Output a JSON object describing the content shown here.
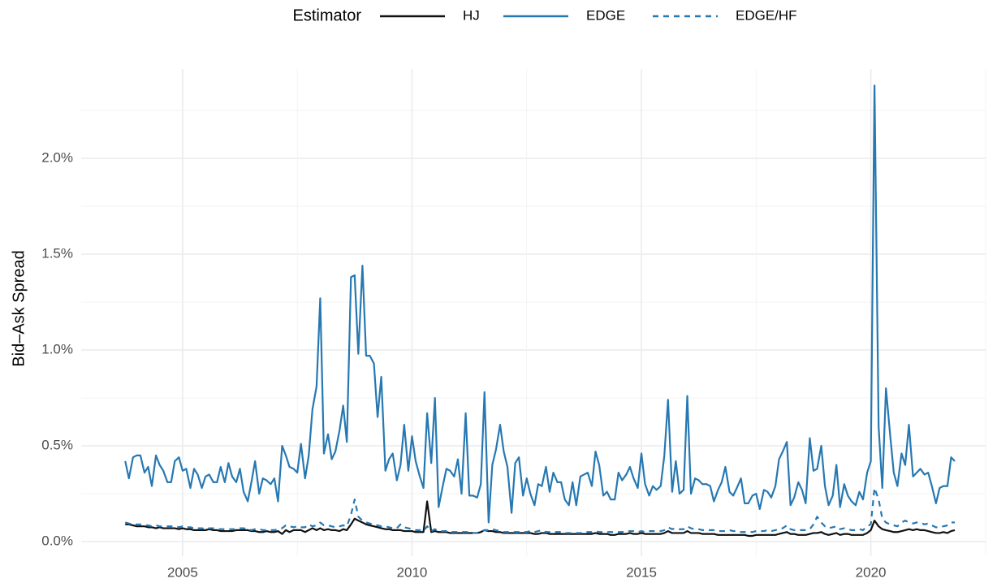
{
  "chart_data": {
    "type": "line",
    "legend_title": "Estimator",
    "y_label": "Bid–Ask Spread",
    "grid": true,
    "legend_position": "top",
    "xlim": [
      2002.79,
      2022.52
    ],
    "xticks": [
      2005,
      2010,
      2015,
      2020
    ],
    "ylim": [
      -0.076,
      2.466
    ],
    "yticks": [
      {
        "value": 0,
        "label": "0.0%"
      },
      {
        "value": 0.5,
        "label": "0.5%"
      },
      {
        "value": 1,
        "label": "1.0%"
      },
      {
        "value": 1.5,
        "label": "1.5%"
      },
      {
        "value": 2,
        "label": "2.0%"
      }
    ],
    "x": [
      2003.75,
      2003.83,
      2003.92,
      2004.0,
      2004.08,
      2004.17,
      2004.25,
      2004.33,
      2004.42,
      2004.5,
      2004.58,
      2004.67,
      2004.75,
      2004.83,
      2004.92,
      2005.0,
      2005.08,
      2005.17,
      2005.25,
      2005.33,
      2005.42,
      2005.5,
      2005.58,
      2005.67,
      2005.75,
      2005.83,
      2005.92,
      2006.0,
      2006.08,
      2006.17,
      2006.25,
      2006.33,
      2006.42,
      2006.5,
      2006.58,
      2006.67,
      2006.75,
      2006.83,
      2006.92,
      2007.0,
      2007.08,
      2007.17,
      2007.25,
      2007.33,
      2007.42,
      2007.5,
      2007.58,
      2007.67,
      2007.75,
      2007.83,
      2007.92,
      2008.0,
      2008.08,
      2008.17,
      2008.25,
      2008.33,
      2008.42,
      2008.5,
      2008.58,
      2008.67,
      2008.75,
      2008.83,
      2008.92,
      2009.0,
      2009.08,
      2009.17,
      2009.25,
      2009.33,
      2009.42,
      2009.5,
      2009.58,
      2009.67,
      2009.75,
      2009.83,
      2009.92,
      2010.0,
      2010.08,
      2010.17,
      2010.25,
      2010.33,
      2010.42,
      2010.5,
      2010.58,
      2010.67,
      2010.75,
      2010.83,
      2010.92,
      2011.0,
      2011.08,
      2011.17,
      2011.25,
      2011.33,
      2011.42,
      2011.5,
      2011.58,
      2011.67,
      2011.75,
      2011.83,
      2011.92,
      2012.0,
      2012.08,
      2012.17,
      2012.25,
      2012.33,
      2012.42,
      2012.5,
      2012.58,
      2012.67,
      2012.75,
      2012.83,
      2012.92,
      2013.0,
      2013.08,
      2013.17,
      2013.25,
      2013.33,
      2013.42,
      2013.5,
      2013.58,
      2013.67,
      2013.75,
      2013.83,
      2013.92,
      2014.0,
      2014.08,
      2014.17,
      2014.25,
      2014.33,
      2014.42,
      2014.5,
      2014.58,
      2014.67,
      2014.75,
      2014.83,
      2014.92,
      2015.0,
      2015.08,
      2015.17,
      2015.25,
      2015.33,
      2015.42,
      2015.5,
      2015.58,
      2015.67,
      2015.75,
      2015.83,
      2015.92,
      2016.0,
      2016.08,
      2016.17,
      2016.25,
      2016.33,
      2016.42,
      2016.5,
      2016.58,
      2016.67,
      2016.75,
      2016.83,
      2016.92,
      2017.0,
      2017.08,
      2017.17,
      2017.25,
      2017.33,
      2017.42,
      2017.5,
      2017.58,
      2017.67,
      2017.75,
      2017.83,
      2017.92,
      2018.0,
      2018.08,
      2018.17,
      2018.25,
      2018.33,
      2018.42,
      2018.5,
      2018.58,
      2018.67,
      2018.75,
      2018.83,
      2018.92,
      2019.0,
      2019.08,
      2019.17,
      2019.25,
      2019.33,
      2019.42,
      2019.5,
      2019.58,
      2019.67,
      2019.75,
      2019.83,
      2019.92,
      2020.0,
      2020.08,
      2020.17,
      2020.25,
      2020.33,
      2020.42,
      2020.5,
      2020.58,
      2020.67,
      2020.75,
      2020.83,
      2020.92,
      2021.0,
      2021.08,
      2021.17,
      2021.25,
      2021.33,
      2021.42,
      2021.5,
      2021.58,
      2021.67,
      2021.75,
      2021.83
    ],
    "series": [
      {
        "name": "HJ",
        "color": "#111111",
        "dash": false,
        "values": [
          0.09,
          0.09,
          0.085,
          0.08,
          0.08,
          0.08,
          0.075,
          0.075,
          0.07,
          0.075,
          0.07,
          0.07,
          0.07,
          0.07,
          0.065,
          0.07,
          0.065,
          0.065,
          0.06,
          0.06,
          0.06,
          0.06,
          0.065,
          0.06,
          0.06,
          0.055,
          0.055,
          0.055,
          0.055,
          0.06,
          0.06,
          0.06,
          0.06,
          0.055,
          0.055,
          0.05,
          0.05,
          0.055,
          0.05,
          0.05,
          0.055,
          0.04,
          0.06,
          0.05,
          0.06,
          0.06,
          0.06,
          0.05,
          0.06,
          0.07,
          0.06,
          0.07,
          0.06,
          0.065,
          0.06,
          0.06,
          0.055,
          0.065,
          0.06,
          0.09,
          0.12,
          0.11,
          0.1,
          0.09,
          0.085,
          0.08,
          0.075,
          0.07,
          0.065,
          0.065,
          0.06,
          0.06,
          0.06,
          0.055,
          0.055,
          0.055,
          0.05,
          0.05,
          0.05,
          0.21,
          0.05,
          0.055,
          0.05,
          0.05,
          0.05,
          0.045,
          0.045,
          0.045,
          0.045,
          0.045,
          0.045,
          0.045,
          0.045,
          0.05,
          0.06,
          0.055,
          0.055,
          0.05,
          0.05,
          0.045,
          0.045,
          0.045,
          0.045,
          0.045,
          0.045,
          0.045,
          0.045,
          0.04,
          0.04,
          0.045,
          0.045,
          0.04,
          0.04,
          0.04,
          0.04,
          0.04,
          0.04,
          0.04,
          0.04,
          0.04,
          0.04,
          0.04,
          0.04,
          0.045,
          0.04,
          0.04,
          0.04,
          0.035,
          0.035,
          0.04,
          0.04,
          0.04,
          0.045,
          0.04,
          0.04,
          0.045,
          0.04,
          0.04,
          0.04,
          0.04,
          0.04,
          0.045,
          0.055,
          0.045,
          0.045,
          0.045,
          0.045,
          0.055,
          0.045,
          0.045,
          0.045,
          0.04,
          0.04,
          0.04,
          0.04,
          0.035,
          0.035,
          0.035,
          0.035,
          0.035,
          0.035,
          0.035,
          0.035,
          0.03,
          0.03,
          0.035,
          0.035,
          0.035,
          0.035,
          0.035,
          0.035,
          0.04,
          0.045,
          0.05,
          0.04,
          0.04,
          0.035,
          0.035,
          0.035,
          0.04,
          0.045,
          0.045,
          0.05,
          0.04,
          0.035,
          0.04,
          0.045,
          0.035,
          0.04,
          0.04,
          0.035,
          0.035,
          0.035,
          0.035,
          0.045,
          0.06,
          0.11,
          0.08,
          0.065,
          0.06,
          0.055,
          0.05,
          0.05,
          0.055,
          0.06,
          0.065,
          0.06,
          0.065,
          0.06,
          0.06,
          0.055,
          0.05,
          0.045,
          0.045,
          0.05,
          0.045,
          0.055,
          0.06
        ]
      },
      {
        "name": "EDGE",
        "color": "#2678b2",
        "dash": false,
        "values": [
          0.42,
          0.33,
          0.44,
          0.45,
          0.45,
          0.36,
          0.39,
          0.29,
          0.45,
          0.4,
          0.37,
          0.31,
          0.31,
          0.42,
          0.44,
          0.37,
          0.38,
          0.28,
          0.38,
          0.35,
          0.28,
          0.34,
          0.35,
          0.31,
          0.31,
          0.39,
          0.31,
          0.41,
          0.34,
          0.31,
          0.38,
          0.26,
          0.21,
          0.31,
          0.42,
          0.25,
          0.33,
          0.32,
          0.3,
          0.33,
          0.21,
          0.5,
          0.45,
          0.39,
          0.38,
          0.36,
          0.51,
          0.33,
          0.45,
          0.69,
          0.81,
          1.27,
          0.46,
          0.56,
          0.43,
          0.47,
          0.58,
          0.71,
          0.52,
          1.38,
          1.39,
          0.98,
          1.44,
          0.97,
          0.97,
          0.93,
          0.65,
          0.86,
          0.37,
          0.43,
          0.46,
          0.32,
          0.4,
          0.61,
          0.37,
          0.55,
          0.42,
          0.34,
          0.28,
          0.67,
          0.41,
          0.75,
          0.18,
          0.29,
          0.38,
          0.37,
          0.34,
          0.43,
          0.25,
          0.67,
          0.24,
          0.24,
          0.23,
          0.3,
          0.78,
          0.1,
          0.4,
          0.48,
          0.61,
          0.47,
          0.39,
          0.15,
          0.41,
          0.44,
          0.24,
          0.33,
          0.25,
          0.19,
          0.3,
          0.29,
          0.39,
          0.26,
          0.36,
          0.31,
          0.31,
          0.22,
          0.19,
          0.31,
          0.19,
          0.34,
          0.35,
          0.36,
          0.29,
          0.47,
          0.4,
          0.24,
          0.26,
          0.22,
          0.22,
          0.36,
          0.32,
          0.35,
          0.39,
          0.33,
          0.28,
          0.46,
          0.3,
          0.24,
          0.29,
          0.27,
          0.29,
          0.45,
          0.74,
          0.26,
          0.42,
          0.25,
          0.27,
          0.76,
          0.25,
          0.33,
          0.32,
          0.3,
          0.3,
          0.29,
          0.21,
          0.27,
          0.31,
          0.39,
          0.26,
          0.24,
          0.28,
          0.33,
          0.2,
          0.2,
          0.24,
          0.25,
          0.17,
          0.27,
          0.26,
          0.23,
          0.29,
          0.43,
          0.47,
          0.52,
          0.19,
          0.23,
          0.31,
          0.27,
          0.2,
          0.54,
          0.37,
          0.38,
          0.5,
          0.29,
          0.19,
          0.24,
          0.4,
          0.18,
          0.3,
          0.24,
          0.21,
          0.19,
          0.26,
          0.22,
          0.36,
          0.42,
          2.38,
          0.6,
          0.28,
          0.8,
          0.56,
          0.36,
          0.29,
          0.46,
          0.4,
          0.61,
          0.34,
          0.36,
          0.38,
          0.35,
          0.36,
          0.29,
          0.2,
          0.28,
          0.29,
          0.29,
          0.44,
          0.42
        ]
      },
      {
        "name": "EDGE/HF",
        "color": "#2678b2",
        "dash": true,
        "values": [
          0.1,
          0.095,
          0.09,
          0.09,
          0.09,
          0.085,
          0.085,
          0.08,
          0.085,
          0.08,
          0.08,
          0.08,
          0.08,
          0.08,
          0.075,
          0.08,
          0.075,
          0.075,
          0.07,
          0.07,
          0.07,
          0.065,
          0.07,
          0.07,
          0.065,
          0.065,
          0.065,
          0.065,
          0.065,
          0.065,
          0.07,
          0.07,
          0.065,
          0.06,
          0.065,
          0.065,
          0.06,
          0.06,
          0.06,
          0.06,
          0.065,
          0.07,
          0.085,
          0.08,
          0.075,
          0.08,
          0.075,
          0.075,
          0.09,
          0.08,
          0.085,
          0.1,
          0.085,
          0.085,
          0.08,
          0.075,
          0.08,
          0.085,
          0.08,
          0.14,
          0.22,
          0.13,
          0.11,
          0.1,
          0.095,
          0.09,
          0.085,
          0.08,
          0.08,
          0.075,
          0.07,
          0.07,
          0.09,
          0.075,
          0.07,
          0.065,
          0.06,
          0.06,
          0.055,
          0.08,
          0.055,
          0.065,
          0.055,
          0.055,
          0.055,
          0.05,
          0.05,
          0.05,
          0.05,
          0.05,
          0.05,
          0.045,
          0.045,
          0.05,
          0.06,
          0.06,
          0.065,
          0.06,
          0.055,
          0.05,
          0.05,
          0.05,
          0.05,
          0.05,
          0.05,
          0.05,
          0.055,
          0.05,
          0.055,
          0.06,
          0.05,
          0.05,
          0.05,
          0.05,
          0.05,
          0.045,
          0.045,
          0.045,
          0.045,
          0.045,
          0.05,
          0.05,
          0.05,
          0.055,
          0.05,
          0.05,
          0.05,
          0.05,
          0.05,
          0.05,
          0.05,
          0.055,
          0.055,
          0.055,
          0.05,
          0.055,
          0.05,
          0.055,
          0.055,
          0.055,
          0.055,
          0.06,
          0.075,
          0.065,
          0.07,
          0.065,
          0.065,
          0.08,
          0.07,
          0.065,
          0.065,
          0.06,
          0.06,
          0.06,
          0.06,
          0.055,
          0.055,
          0.055,
          0.06,
          0.055,
          0.055,
          0.05,
          0.05,
          0.05,
          0.05,
          0.055,
          0.055,
          0.055,
          0.06,
          0.055,
          0.06,
          0.065,
          0.07,
          0.085,
          0.065,
          0.06,
          0.06,
          0.06,
          0.06,
          0.065,
          0.09,
          0.13,
          0.1,
          0.08,
          0.07,
          0.075,
          0.08,
          0.065,
          0.07,
          0.065,
          0.06,
          0.06,
          0.065,
          0.06,
          0.08,
          0.09,
          0.28,
          0.22,
          0.12,
          0.1,
          0.09,
          0.085,
          0.08,
          0.1,
          0.11,
          0.1,
          0.095,
          0.1,
          0.1,
          0.09,
          0.095,
          0.085,
          0.075,
          0.075,
          0.08,
          0.085,
          0.1,
          0.1
        ]
      }
    ]
  }
}
